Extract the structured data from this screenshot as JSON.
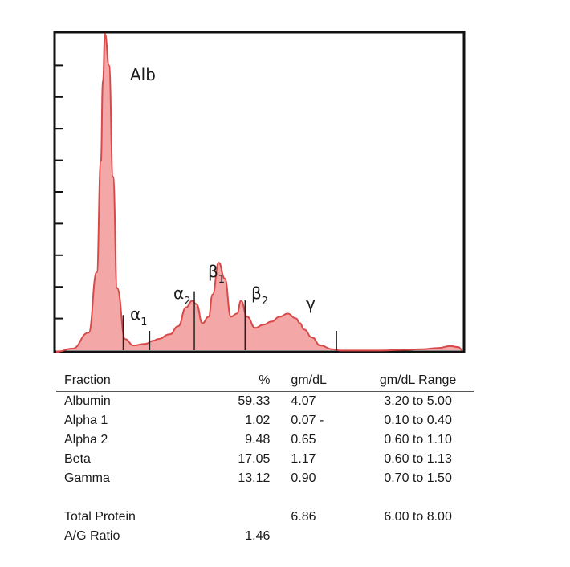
{
  "chart_data": {
    "type": "area",
    "peak_labels": [
      {
        "fraction": "Albumin",
        "text": "Alb",
        "sub": ""
      },
      {
        "fraction": "Alpha 1",
        "text": "α",
        "sub": "1"
      },
      {
        "fraction": "Alpha 2",
        "text": "α",
        "sub": "2"
      },
      {
        "fraction": "Beta 1",
        "text": "β",
        "sub": "1"
      },
      {
        "fraction": "Beta 2",
        "text": "β",
        "sub": "2"
      },
      {
        "fraction": "Gamma",
        "text": "γ",
        "sub": ""
      }
    ],
    "x_unit": "relative electrophoretic mobility (0 to 1)",
    "x": [
      0.0,
      0.04,
      0.08,
      0.1,
      0.11,
      0.115,
      0.12,
      0.13,
      0.14,
      0.15,
      0.17,
      0.19,
      0.22,
      0.24,
      0.25,
      0.28,
      0.3,
      0.32,
      0.335,
      0.345,
      0.36,
      0.375,
      0.385,
      0.4,
      0.415,
      0.43,
      0.445,
      0.455,
      0.47,
      0.49,
      0.51,
      0.53,
      0.55,
      0.57,
      0.59,
      0.6,
      0.61,
      0.63,
      0.65,
      0.68,
      0.7,
      0.72,
      0.75,
      0.8,
      0.85,
      0.9,
      0.94,
      0.97,
      0.99,
      1.0
    ],
    "y_unit": "relative absorbance (0 to 1)",
    "values": [
      0.0,
      0.01,
      0.06,
      0.25,
      0.6,
      0.85,
      1.0,
      0.9,
      0.55,
      0.2,
      0.04,
      0.02,
      0.025,
      0.035,
      0.04,
      0.055,
      0.08,
      0.14,
      0.16,
      0.15,
      0.09,
      0.11,
      0.18,
      0.28,
      0.23,
      0.11,
      0.12,
      0.16,
      0.11,
      0.075,
      0.085,
      0.095,
      0.11,
      0.12,
      0.105,
      0.09,
      0.07,
      0.045,
      0.02,
      0.008,
      0.004,
      0.004,
      0.004,
      0.004,
      0.006,
      0.008,
      0.012,
      0.018,
      0.015,
      0.005
    ],
    "fraction_boundaries": [
      0.165,
      0.23,
      0.34,
      0.465,
      0.69
    ],
    "y_ticks": 9,
    "fill_color": "#f4a7a7",
    "line_color": "#d84a4a"
  },
  "table": {
    "headers": {
      "fraction": "Fraction",
      "percent": "%",
      "gm_dl": "gm/dL",
      "range": "gm/dL Range"
    },
    "rows": [
      {
        "fraction": "Albumin",
        "percent": "59.33",
        "gm_dl": "4.07",
        "range": "3.20 to 5.00"
      },
      {
        "fraction": "Alpha 1",
        "percent": "1.02",
        "gm_dl": "0.07 -",
        "range": "0.10 to 0.40"
      },
      {
        "fraction": "Alpha 2",
        "percent": "9.48",
        "gm_dl": "0.65",
        "range": "0.60 to 1.10"
      },
      {
        "fraction": "Beta",
        "percent": "17.05",
        "gm_dl": "1.17",
        "range": "0.60 to 1.13"
      },
      {
        "fraction": "Gamma",
        "percent": "13.12",
        "gm_dl": "0.90",
        "range": "0.70 to 1.50"
      }
    ],
    "total_protein": {
      "label": "Total Protein",
      "gm_dl": "6.86",
      "range": "6.00 to 8.00"
    },
    "ag_ratio": {
      "label": "A/G Ratio",
      "value": "1.46"
    }
  }
}
